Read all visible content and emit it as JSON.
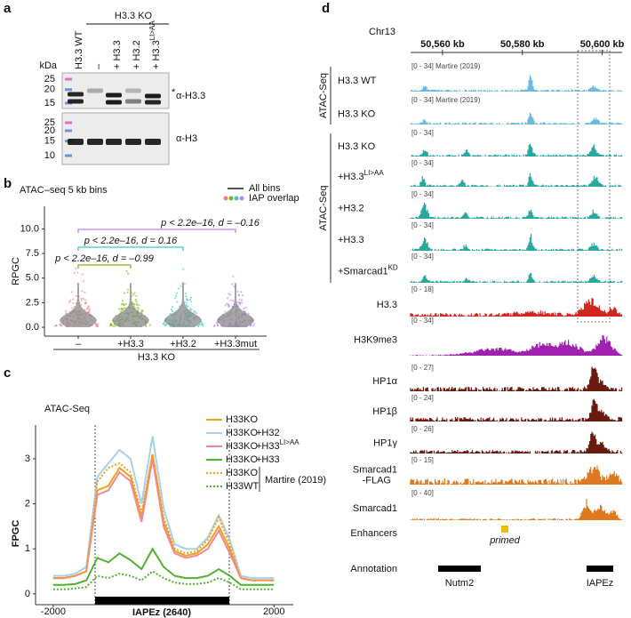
{
  "panel_labels": [
    "a",
    "b",
    "c",
    "d"
  ],
  "a": {
    "group_label": "H3.3 KO",
    "lanes": [
      {
        "label": "H3.3 WT"
      },
      {
        "label": "–"
      },
      {
        "label": "+ H3.3"
      },
      {
        "label": "+ H3.2"
      },
      {
        "label": "+ H3.3",
        "sup": "LI>AA"
      }
    ],
    "unit": "kDa",
    "ladder_top": [
      25,
      20,
      15
    ],
    "ladder_bottom": [
      25,
      20,
      15,
      10
    ],
    "antibodies": [
      "α-H3.3",
      "α-H3"
    ],
    "asterisk": "*"
  },
  "b": {
    "title": "ATAC–seq 5 kb bins",
    "legend": [
      "All bins",
      "IAP overlap"
    ],
    "ylabel": "RPGC",
    "ylim": [
      -0.9,
      12.3
    ],
    "yticks": [
      {
        "value": 0,
        "label": "0.0"
      },
      {
        "value": 2.5,
        "label": "2.5"
      },
      {
        "value": 5,
        "label": "5.0"
      },
      {
        "value": 7.5,
        "label": "7.5"
      },
      {
        "value": 10,
        "label": "10.0"
      }
    ],
    "categories": [
      "–",
      "+H3.3",
      "+H3.2",
      "+H3.3mut"
    ],
    "colors": [
      "#f08080",
      "#7cb518",
      "#3cc8c8",
      "#c080e8"
    ],
    "xlabel": "H3.3 KO",
    "comparisons": [
      {
        "text": "p < 2.2e–16, d = –0.16",
        "color": "#c080e8",
        "between": [
          "–",
          "+H3.3mut"
        ]
      },
      {
        "text": "p < 2.2e–16, d = 0.16",
        "color": "#3cc8c8",
        "between": [
          "–",
          "+H3.2"
        ]
      },
      {
        "text": "p < 2.2e–16, d = –0.99",
        "color": "#7cb518",
        "between": [
          "–",
          "+H3.3"
        ]
      }
    ]
  },
  "c": {
    "type": "line",
    "title": "ATAC-Seq",
    "ylabel": "FPGC",
    "xlabel": "IAPEz (2640)",
    "xlim": [
      -2320,
      2350
    ],
    "xticks": [
      -2000,
      2000
    ],
    "ylim": [
      -0.24,
      3.75
    ],
    "yticks": [
      0,
      1,
      2,
      3
    ],
    "x": [
      -2000,
      -1800,
      -1600,
      -1400,
      -1200,
      -1000,
      -800,
      -600,
      -400,
      -200,
      0,
      200,
      400,
      600,
      800,
      1000,
      1200,
      1400,
      1600,
      1800,
      2000
    ],
    "series": [
      {
        "name": "H33KO",
        "color": "#f0a020",
        "dash": false,
        "values": [
          0.35,
          0.35,
          0.4,
          0.5,
          2.3,
          2.4,
          2.8,
          2.6,
          1.7,
          3.1,
          1.6,
          0.95,
          0.85,
          0.9,
          1.1,
          1.5,
          1.0,
          0.35,
          0.3,
          0.3,
          0.3
        ]
      },
      {
        "name": "H33KO",
        "suffix": "+H32",
        "color": "#a8d0e8",
        "dash": false,
        "values": [
          0.4,
          0.4,
          0.45,
          0.6,
          2.6,
          2.9,
          3.2,
          3.0,
          2.0,
          3.5,
          1.9,
          1.1,
          1.0,
          1.0,
          1.25,
          1.75,
          1.2,
          0.4,
          0.35,
          0.35,
          0.35
        ]
      },
      {
        "name": "H33KO",
        "suffix": "+H33",
        "suffix_sup": "LI>AA",
        "color": "#f08890",
        "dash": false,
        "values": [
          0.35,
          0.35,
          0.4,
          0.5,
          2.2,
          2.3,
          2.7,
          2.5,
          1.6,
          3.0,
          1.5,
          0.9,
          0.8,
          0.85,
          1.0,
          1.4,
          0.9,
          0.35,
          0.3,
          0.3,
          0.3
        ]
      },
      {
        "name": "H33KO",
        "suffix": "+H33",
        "color": "#50b030",
        "dash": false,
        "values": [
          0.2,
          0.2,
          0.22,
          0.3,
          0.8,
          0.7,
          0.9,
          0.75,
          0.55,
          1.0,
          0.6,
          0.4,
          0.35,
          0.35,
          0.4,
          0.55,
          0.4,
          0.2,
          0.2,
          0.2,
          0.2
        ]
      },
      {
        "name": "H33KO",
        "color": "#f0a020",
        "dash": true,
        "values": [
          0.35,
          0.35,
          0.4,
          0.5,
          2.5,
          2.8,
          2.9,
          2.7,
          1.8,
          3.1,
          1.7,
          1.0,
          0.9,
          0.95,
          1.2,
          1.7,
          1.1,
          0.35,
          0.3,
          0.3,
          0.3
        ]
      },
      {
        "name": "H33WT",
        "color": "#50b030",
        "dash": true,
        "values": [
          0.1,
          0.1,
          0.12,
          0.15,
          0.4,
          0.35,
          0.45,
          0.4,
          0.3,
          0.5,
          0.35,
          0.25,
          0.22,
          0.22,
          0.25,
          0.35,
          0.25,
          0.1,
          0.1,
          0.1,
          0.1
        ]
      }
    ],
    "legend_note": "Martire (2019)"
  },
  "d": {
    "chromosome": "Chr13",
    "xlim": [
      50552,
      50605
    ],
    "xticks": [
      {
        "value": 50560,
        "label": "50,560 kb"
      },
      {
        "value": 50580,
        "label": "50,580 kb"
      },
      {
        "value": 50600,
        "label": "50,600 kb"
      }
    ],
    "groups": [
      {
        "label": "ATAC-Seq",
        "color": "#6ab8e0",
        "tracks": [
          {
            "label": "H3.3 WT",
            "range": "[0 - 34] Martire (2019)"
          },
          {
            "label": "H3.3 KO",
            "range": "[0 - 34] Martire (2019)"
          }
        ]
      },
      {
        "label": "ATAC-Seq",
        "color": "#2aa8a0",
        "tracks": [
          {
            "label": "H3.3 KO",
            "range": "[0 - 34]"
          },
          {
            "label": "+H3.3",
            "sup": "LI>AA",
            "range": "[0 - 34]"
          },
          {
            "label": "+H3.2",
            "range": "[0 - 34]"
          },
          {
            "label": "+H3.3",
            "range": "[0 - 34]"
          },
          {
            "label": "+Smarcad1",
            "sup": "KD",
            "range": "[0 - 34]"
          }
        ]
      }
    ],
    "tracks": [
      {
        "label": "H3.3",
        "range": "[0 - 18]",
        "color": "#d0281e"
      },
      {
        "label": "H3K9me3",
        "range": "[0 - 34]",
        "color": "#a020b0"
      },
      {
        "label": "HP1α",
        "range": "[0 - 27]",
        "color": "#6b1a10"
      },
      {
        "label": "HP1β",
        "range": "[0 - 24]",
        "color": "#6b1a10"
      },
      {
        "label": "HP1γ",
        "range": "[0 - 26]",
        "color": "#6b1a10"
      },
      {
        "label": "Smarcad1",
        "sublabel": "-FLAG",
        "range": "[0 - 15]",
        "color": "#e07820"
      },
      {
        "label": "Smarcad1",
        "range": "[0 - 40]",
        "color": "#e07820"
      }
    ],
    "enhancers": {
      "label": "Enhancers",
      "note": "primed"
    },
    "annotation": {
      "label": "Annotation",
      "genes": [
        "Nutm2",
        "IAPEz"
      ]
    }
  }
}
